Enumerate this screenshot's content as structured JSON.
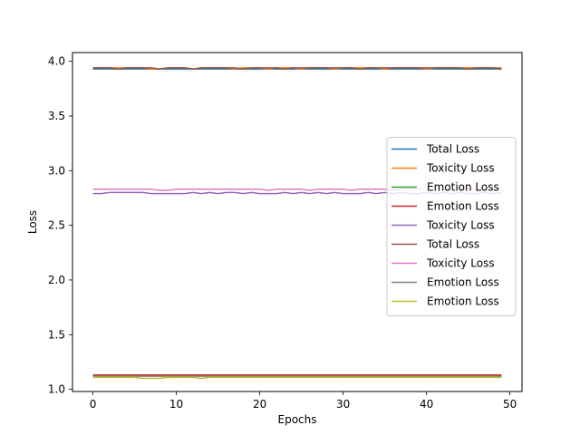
{
  "chart_data": {
    "type": "line",
    "xlabel": "Epochs",
    "ylabel": "Loss",
    "xlim": [
      -2.45,
      51.45
    ],
    "ylim": [
      0.98,
      4.08
    ],
    "xticks": [
      0,
      10,
      20,
      30,
      40,
      50
    ],
    "yticks": [
      1.0,
      1.5,
      2.0,
      2.5,
      3.0,
      3.5,
      4.0
    ],
    "ytick_labels": [
      "1.0",
      "1.5",
      "2.0",
      "2.5",
      "3.0",
      "3.5",
      "4.0"
    ],
    "grid": false,
    "legend_position": "center-right",
    "epochs": 50,
    "series": [
      {
        "name": "Total Loss",
        "color": "#1f77b4",
        "values": [
          3.93,
          3.93,
          3.93,
          3.93,
          3.93,
          3.93,
          3.93,
          3.93,
          3.93,
          3.93,
          3.93,
          3.93,
          3.93,
          3.93,
          3.93,
          3.93,
          3.93,
          3.93,
          3.93,
          3.93,
          3.93,
          3.93,
          3.93,
          3.93,
          3.93,
          3.93,
          3.93,
          3.93,
          3.93,
          3.93,
          3.93,
          3.93,
          3.93,
          3.93,
          3.93,
          3.93,
          3.93,
          3.93,
          3.93,
          3.93,
          3.93,
          3.93,
          3.93,
          3.93,
          3.93,
          3.93,
          3.93,
          3.93,
          3.93,
          3.93
        ]
      },
      {
        "name": "Toxicity Loss",
        "color": "#ff7f0e",
        "values": [
          3.94,
          3.94,
          3.94,
          3.94,
          3.94,
          3.94,
          3.94,
          3.93,
          3.93,
          3.94,
          3.94,
          3.94,
          3.93,
          3.94,
          3.94,
          3.94,
          3.94,
          3.93,
          3.94,
          3.94,
          3.94,
          3.93,
          3.94,
          3.94,
          3.94,
          3.93,
          3.94,
          3.94,
          3.94,
          3.93,
          3.94,
          3.94,
          3.94,
          3.94,
          3.94,
          3.93,
          3.94,
          3.94,
          3.94,
          3.94,
          3.93,
          3.94,
          3.94,
          3.94,
          3.94,
          3.94,
          3.94,
          3.94,
          3.94,
          3.94
        ]
      },
      {
        "name": "Emotion Loss",
        "color": "#2ca02c",
        "values": [
          1.13,
          1.13,
          1.13,
          1.13,
          1.13,
          1.13,
          1.13,
          1.13,
          1.13,
          1.13,
          1.13,
          1.13,
          1.13,
          1.13,
          1.13,
          1.13,
          1.13,
          1.13,
          1.13,
          1.13,
          1.13,
          1.13,
          1.13,
          1.13,
          1.13,
          1.13,
          1.13,
          1.13,
          1.13,
          1.13,
          1.13,
          1.13,
          1.13,
          1.13,
          1.13,
          1.13,
          1.13,
          1.13,
          1.13,
          1.13,
          1.13,
          1.13,
          1.13,
          1.13,
          1.13,
          1.13,
          1.13,
          1.13,
          1.13,
          1.13
        ]
      },
      {
        "name": "Emotion Loss",
        "color": "#d62728",
        "values": [
          1.13,
          1.13,
          1.13,
          1.13,
          1.13,
          1.13,
          1.13,
          1.13,
          1.13,
          1.13,
          1.13,
          1.13,
          1.13,
          1.13,
          1.13,
          1.13,
          1.13,
          1.13,
          1.13,
          1.13,
          1.13,
          1.13,
          1.13,
          1.13,
          1.13,
          1.13,
          1.13,
          1.13,
          1.13,
          1.13,
          1.13,
          1.13,
          1.13,
          1.13,
          1.13,
          1.13,
          1.13,
          1.13,
          1.13,
          1.13,
          1.13,
          1.13,
          1.13,
          1.13,
          1.13,
          1.13,
          1.13,
          1.13,
          1.13,
          1.13
        ]
      },
      {
        "name": "Toxicity Loss",
        "color": "#9467bd",
        "values": [
          2.79,
          2.79,
          2.8,
          2.8,
          2.8,
          2.8,
          2.8,
          2.79,
          2.79,
          2.79,
          2.79,
          2.79,
          2.8,
          2.79,
          2.8,
          2.79,
          2.8,
          2.8,
          2.79,
          2.8,
          2.79,
          2.79,
          2.79,
          2.8,
          2.79,
          2.8,
          2.79,
          2.8,
          2.79,
          2.8,
          2.79,
          2.79,
          2.79,
          2.8,
          2.79,
          2.8,
          2.79,
          2.8,
          2.79,
          2.79,
          2.8,
          2.79,
          2.8,
          2.79,
          2.8,
          2.79,
          2.79,
          2.8,
          2.79,
          2.8
        ]
      },
      {
        "name": "Total Loss",
        "color": "#8c564b",
        "values": [
          3.94,
          3.94,
          3.94,
          3.93,
          3.94,
          3.94,
          3.94,
          3.94,
          3.93,
          3.94,
          3.94,
          3.94,
          3.93,
          3.94,
          3.94,
          3.94,
          3.94,
          3.94,
          3.93,
          3.94,
          3.94,
          3.94,
          3.94,
          3.93,
          3.94,
          3.94,
          3.94,
          3.94,
          3.94,
          3.94,
          3.94,
          3.94,
          3.93,
          3.94,
          3.94,
          3.94,
          3.94,
          3.94,
          3.94,
          3.94,
          3.94,
          3.94,
          3.94,
          3.94,
          3.94,
          3.93,
          3.94,
          3.94,
          3.94,
          3.93
        ]
      },
      {
        "name": "Toxicity Loss",
        "color": "#e377c2",
        "values": [
          2.83,
          2.83,
          2.83,
          2.83,
          2.83,
          2.83,
          2.83,
          2.83,
          2.82,
          2.82,
          2.83,
          2.83,
          2.83,
          2.83,
          2.83,
          2.83,
          2.83,
          2.83,
          2.83,
          2.83,
          2.83,
          2.82,
          2.83,
          2.83,
          2.83,
          2.83,
          2.82,
          2.83,
          2.83,
          2.83,
          2.83,
          2.82,
          2.83,
          2.83,
          2.83,
          2.83,
          2.82,
          2.83,
          2.83,
          2.83,
          2.83,
          2.82,
          2.83,
          2.83,
          2.83,
          2.83,
          2.83,
          2.83,
          2.83,
          2.83
        ]
      },
      {
        "name": "Emotion Loss",
        "color": "#7f7f7f",
        "values": [
          1.12,
          1.12,
          1.12,
          1.12,
          1.12,
          1.12,
          1.12,
          1.12,
          1.12,
          1.12,
          1.12,
          1.12,
          1.12,
          1.12,
          1.12,
          1.12,
          1.12,
          1.12,
          1.12,
          1.12,
          1.12,
          1.12,
          1.12,
          1.12,
          1.12,
          1.12,
          1.12,
          1.12,
          1.12,
          1.12,
          1.12,
          1.12,
          1.12,
          1.12,
          1.12,
          1.12,
          1.12,
          1.12,
          1.12,
          1.12,
          1.12,
          1.12,
          1.12,
          1.12,
          1.12,
          1.12,
          1.12,
          1.12,
          1.12,
          1.12
        ]
      },
      {
        "name": "Emotion Loss",
        "color": "#bcbd22",
        "values": [
          1.11,
          1.11,
          1.11,
          1.11,
          1.11,
          1.11,
          1.1,
          1.1,
          1.1,
          1.11,
          1.11,
          1.11,
          1.11,
          1.1,
          1.11,
          1.11,
          1.11,
          1.11,
          1.11,
          1.11,
          1.11,
          1.11,
          1.11,
          1.11,
          1.11,
          1.11,
          1.11,
          1.11,
          1.11,
          1.11,
          1.11,
          1.11,
          1.11,
          1.11,
          1.11,
          1.11,
          1.11,
          1.11,
          1.11,
          1.11,
          1.11,
          1.11,
          1.11,
          1.11,
          1.11,
          1.11,
          1.11,
          1.11,
          1.11,
          1.11
        ]
      }
    ]
  }
}
